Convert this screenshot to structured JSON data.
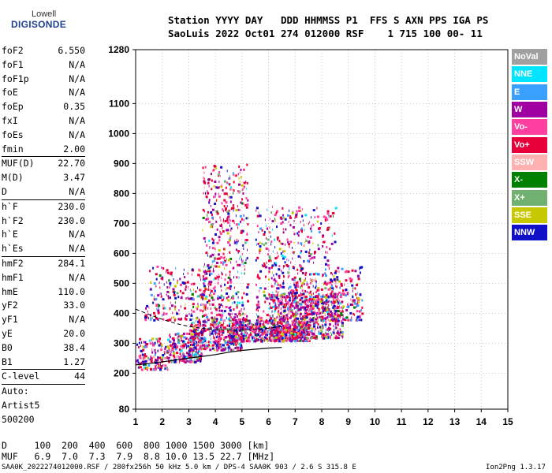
{
  "logo": {
    "top": "Lowell",
    "bottom": "DIGISONDE"
  },
  "header": {
    "row1": "Station YYYY DAY   DDD HHMMSS P1  FFS S AXN PPS IGA PS",
    "row2": "SaoLuis 2022 Oct01 274 012000 RSF    1 715 100 00- 11"
  },
  "params": {
    "g1": [
      {
        "k": "foF2",
        "v": "6.550"
      },
      {
        "k": "foF1",
        "v": "N/A"
      },
      {
        "k": "foF1p",
        "v": "N/A"
      },
      {
        "k": "foE",
        "v": "N/A"
      },
      {
        "k": "foEp",
        "v": "0.35"
      },
      {
        "k": "fxI",
        "v": "N/A"
      },
      {
        "k": "foEs",
        "v": "N/A"
      },
      {
        "k": "fmin",
        "v": "2.00"
      }
    ],
    "g2": [
      {
        "k": "MUF(D)",
        "v": "22.70"
      },
      {
        "k": "M(D)",
        "v": "3.47"
      },
      {
        "k": "D",
        "v": "N/A"
      }
    ],
    "g3": [
      {
        "k": "h`F",
        "v": "230.0"
      },
      {
        "k": "h`F2",
        "v": "230.0"
      },
      {
        "k": "h`E",
        "v": "N/A"
      },
      {
        "k": "h`Es",
        "v": "N/A"
      }
    ],
    "g4": [
      {
        "k": "hmF2",
        "v": "284.1"
      },
      {
        "k": "hmF1",
        "v": "N/A"
      },
      {
        "k": "hmE",
        "v": "110.0"
      },
      {
        "k": "yF2",
        "v": "33.0"
      },
      {
        "k": "yF1",
        "v": "N/A"
      },
      {
        "k": "yE",
        "v": "20.0"
      },
      {
        "k": "B0",
        "v": "38.4"
      },
      {
        "k": "B1",
        "v": "1.27"
      }
    ],
    "g5": [
      {
        "k": "C-level",
        "v": "44"
      }
    ],
    "auto": [
      "Auto:",
      "Artist5",
      "500200"
    ]
  },
  "legend": [
    {
      "label": "NoVal",
      "color": "#a0a0a0"
    },
    {
      "label": "NNE",
      "color": "#00e5ff"
    },
    {
      "label": "E",
      "color": "#3aa0ff"
    },
    {
      "label": "W",
      "color": "#a000a0"
    },
    {
      "label": "Vo-",
      "color": "#ff3fa0"
    },
    {
      "label": "Vo+",
      "color": "#e8003a"
    },
    {
      "label": "SSW",
      "color": "#ffb0b0"
    },
    {
      "label": "X-",
      "color": "#008000"
    },
    {
      "label": "X+",
      "color": "#70b070"
    },
    {
      "label": "SSE",
      "color": "#c8c800"
    },
    {
      "label": "NNW",
      "color": "#1010c8"
    }
  ],
  "footer": {
    "row1": "D     100  200  400  600  800 1000 1500 3000 [km]",
    "row2": "MUF   6.9  7.0  7.3  7.9  8.8 10.0 13.5 22.7 [MHz]",
    "row3": "SAA0K_2022274012000.RSF / 280fx256h 50 kHz 5.0 km / DPS-4 SAA0K 903 / 2.6 S 315.8 E",
    "version": "Ion2Png 1.3.17"
  },
  "chart_data": {
    "type": "scatter",
    "xlim": [
      1,
      15
    ],
    "ylim": [
      80,
      1280
    ],
    "x_ticks": [
      1,
      2,
      3,
      4,
      5,
      6,
      7,
      8,
      9,
      10,
      11,
      12,
      13,
      14,
      15
    ],
    "y_ticks": [
      80,
      200,
      300,
      400,
      500,
      600,
      700,
      800,
      900,
      1000,
      1100,
      1280
    ],
    "grid": true,
    "legend_position": "right",
    "trace_clusters": [
      {
        "x": [
          1.0,
          2.2
        ],
        "y": [
          215,
          320
        ],
        "n": 160
      },
      {
        "x": [
          2.2,
          3.5
        ],
        "y": [
          240,
          340
        ],
        "n": 260
      },
      {
        "x": [
          3.0,
          5.0
        ],
        "y": [
          280,
          380
        ],
        "n": 380
      },
      {
        "x": [
          4.5,
          7.5
        ],
        "y": [
          310,
          380
        ],
        "n": 620
      },
      {
        "x": [
          6.0,
          8.8
        ],
        "y": [
          320,
          470
        ],
        "n": 620
      },
      {
        "x": [
          3.5,
          5.2
        ],
        "y": [
          380,
          900
        ],
        "n": 520
      },
      {
        "x": [
          5.5,
          8.5
        ],
        "y": [
          380,
          760
        ],
        "n": 520
      },
      {
        "x": [
          1.5,
          3.8
        ],
        "y": [
          450,
          560
        ],
        "n": 140
      },
      {
        "x": [
          8.5,
          9.5
        ],
        "y": [
          380,
          560
        ],
        "n": 130
      },
      {
        "x": [
          1.3,
          3.5
        ],
        "y": [
          380,
          440
        ],
        "n": 90
      },
      {
        "x": [
          6.8,
          8.6
        ],
        "y": [
          400,
          520
        ],
        "n": 200
      }
    ],
    "profile_curve": {
      "x": [
        1.0,
        1.5,
        2.0,
        2.5,
        3.0,
        3.5,
        4.0,
        4.5,
        5.0,
        5.5,
        6.0,
        6.5
      ],
      "y": [
        228,
        232,
        238,
        244,
        250,
        256,
        262,
        270,
        276,
        280,
        284,
        286
      ]
    },
    "dashed_curve": {
      "x": [
        1.0,
        1.5,
        2.0,
        2.5,
        3.0,
        3.5,
        4.0,
        4.5,
        5.0,
        5.5,
        6.0,
        6.5
      ],
      "y": [
        414,
        396,
        380,
        366,
        356,
        350,
        346,
        344,
        344,
        346,
        350,
        356
      ]
    }
  }
}
